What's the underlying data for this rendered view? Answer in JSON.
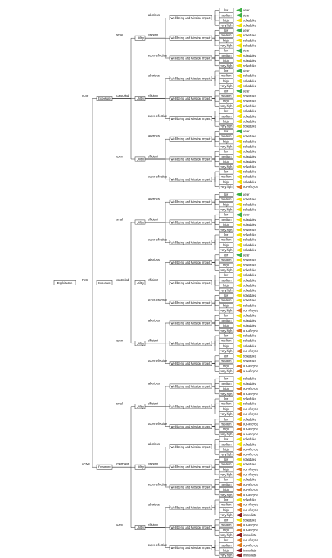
{
  "root": "Exploitation",
  "exposure_label": "Exposure",
  "utility_label": "Utility",
  "wellbeing_label": "Well-being and Mission Impact",
  "impact_levels": [
    "low",
    "medium",
    "high",
    "very high"
  ],
  "colors": {
    "defer": "#3cb043",
    "scheduled": "#f2e200",
    "out-of-cycle": "#e07b18",
    "immediate": "#8b1a1a"
  },
  "exploitation": [
    {
      "label": "none",
      "exposure": [
        {
          "label": "small",
          "utility": [
            {
              "label": "laborious",
              "outcomes": [
                "defer",
                "defer",
                "scheduled",
                "scheduled"
              ]
            },
            {
              "label": "efficient",
              "outcomes": [
                "defer",
                "scheduled",
                "scheduled",
                "scheduled"
              ]
            },
            {
              "label": "super effective",
              "outcomes": [
                "defer",
                "scheduled",
                "scheduled",
                "scheduled"
              ]
            }
          ]
        },
        {
          "label": "controlled",
          "utility": [
            {
              "label": "laborious",
              "outcomes": [
                "defer",
                "scheduled",
                "scheduled",
                "scheduled"
              ]
            },
            {
              "label": "efficient",
              "outcomes": [
                "defer",
                "scheduled",
                "scheduled",
                "scheduled"
              ]
            },
            {
              "label": "super effective",
              "outcomes": [
                "scheduled",
                "scheduled",
                "scheduled",
                "scheduled"
              ]
            }
          ]
        },
        {
          "label": "open",
          "utility": [
            {
              "label": "laborious",
              "outcomes": [
                "defer",
                "scheduled",
                "scheduled",
                "scheduled"
              ]
            },
            {
              "label": "efficient",
              "outcomes": [
                "scheduled",
                "scheduled",
                "scheduled",
                "scheduled"
              ]
            },
            {
              "label": "super effective",
              "outcomes": [
                "scheduled",
                "scheduled",
                "scheduled",
                "out-of-cycle"
              ]
            }
          ]
        }
      ]
    },
    {
      "label": "PoC",
      "exposure": [
        {
          "label": "small",
          "utility": [
            {
              "label": "laborious",
              "outcomes": [
                "defer",
                "scheduled",
                "scheduled",
                "scheduled"
              ]
            },
            {
              "label": "efficient",
              "outcomes": [
                "defer",
                "scheduled",
                "scheduled",
                "scheduled"
              ]
            },
            {
              "label": "super effective",
              "outcomes": [
                "scheduled",
                "scheduled",
                "scheduled",
                "scheduled"
              ]
            }
          ]
        },
        {
          "label": "controlled",
          "utility": [
            {
              "label": "laborious",
              "outcomes": [
                "defer",
                "scheduled",
                "scheduled",
                "scheduled"
              ]
            },
            {
              "label": "efficient",
              "outcomes": [
                "scheduled",
                "scheduled",
                "scheduled",
                "scheduled"
              ]
            },
            {
              "label": "super effective",
              "outcomes": [
                "scheduled",
                "scheduled",
                "scheduled",
                "out-of-cycle"
              ]
            }
          ]
        },
        {
          "label": "open",
          "utility": [
            {
              "label": "laborious",
              "outcomes": [
                "scheduled",
                "scheduled",
                "scheduled",
                "out-of-cycle"
              ]
            },
            {
              "label": "efficient",
              "outcomes": [
                "scheduled",
                "scheduled",
                "scheduled",
                "out-of-cycle"
              ]
            },
            {
              "label": "super effective",
              "outcomes": [
                "scheduled",
                "scheduled",
                "out-of-cycle",
                "out-of-cycle"
              ]
            }
          ]
        }
      ]
    },
    {
      "label": "active",
      "exposure": [
        {
          "label": "small",
          "utility": [
            {
              "label": "laborious",
              "outcomes": [
                "scheduled",
                "scheduled",
                "out-of-cycle",
                "out-of-cycle"
              ]
            },
            {
              "label": "efficient",
              "outcomes": [
                "scheduled",
                "scheduled",
                "out-of-cycle",
                "out-of-cycle"
              ]
            },
            {
              "label": "super effective",
              "outcomes": [
                "scheduled",
                "out-of-cycle",
                "out-of-cycle",
                "out-of-cycle"
              ]
            }
          ]
        },
        {
          "label": "controlled",
          "utility": [
            {
              "label": "laborious",
              "outcomes": [
                "scheduled",
                "scheduled",
                "out-of-cycle",
                "out-of-cycle"
              ]
            },
            {
              "label": "efficient",
              "outcomes": [
                "scheduled",
                "scheduled",
                "out-of-cycle",
                "out-of-cycle"
              ]
            },
            {
              "label": "super effective",
              "outcomes": [
                "scheduled",
                "out-of-cycle",
                "out-of-cycle",
                "out-of-cycle"
              ]
            }
          ]
        },
        {
          "label": "open",
          "utility": [
            {
              "label": "laborious",
              "outcomes": [
                "scheduled",
                "out-of-cycle",
                "out-of-cycle",
                "immediate"
              ]
            },
            {
              "label": "efficient",
              "outcomes": [
                "scheduled",
                "out-of-cycle",
                "out-of-cycle",
                "immediate"
              ]
            },
            {
              "label": "super effective",
              "outcomes": [
                "out-of-cycle",
                "out-of-cycle",
                "immediate",
                "immediate"
              ]
            }
          ]
        }
      ]
    }
  ]
}
